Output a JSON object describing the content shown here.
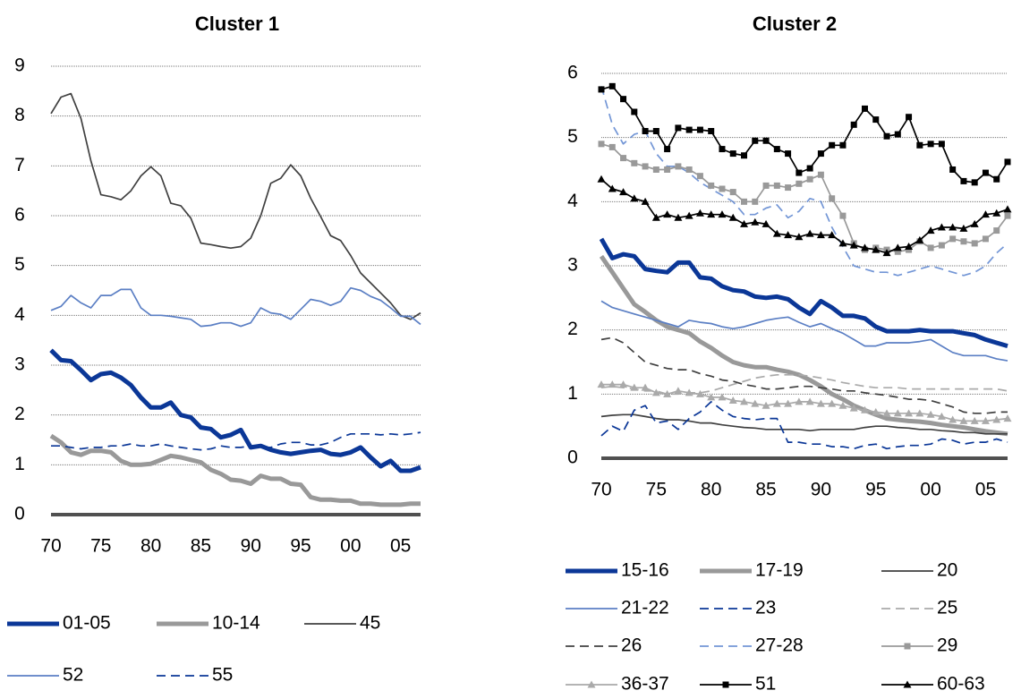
{
  "chart_data": [
    {
      "type": "line",
      "title": "Cluster 1",
      "categories": [
        "70",
        null,
        null,
        null,
        null,
        "75",
        null,
        null,
        null,
        null,
        "80",
        null,
        null,
        null,
        null,
        "85",
        null,
        null,
        null,
        null,
        "90",
        null,
        null,
        null,
        null,
        "95",
        null,
        null,
        null,
        null,
        "00",
        null,
        null,
        null,
        null,
        "05",
        null,
        null
      ],
      "ylim": [
        0,
        9
      ],
      "yticks": [
        0,
        1,
        2,
        3,
        4,
        5,
        6,
        7,
        8,
        9
      ],
      "grid": true,
      "series": [
        {
          "name": "01-05",
          "color": "#0b3797",
          "weight": "thick",
          "style": "solid",
          "values": [
            3.3,
            3.1,
            3.08,
            2.9,
            2.7,
            2.82,
            2.85,
            2.75,
            2.6,
            2.35,
            2.15,
            2.15,
            2.25,
            2.0,
            1.95,
            1.75,
            1.72,
            1.55,
            1.6,
            1.7,
            1.35,
            1.38,
            1.3,
            1.25,
            1.22,
            1.25,
            1.28,
            1.3,
            1.22,
            1.2,
            1.25,
            1.35,
            1.15,
            0.97,
            1.08,
            0.88,
            0.88,
            0.95
          ]
        },
        {
          "name": "10-14",
          "color": "#999999",
          "weight": "thick",
          "style": "solid",
          "values": [
            1.58,
            1.45,
            1.25,
            1.2,
            1.28,
            1.28,
            1.25,
            1.08,
            1.0,
            1.0,
            1.02,
            1.1,
            1.18,
            1.15,
            1.1,
            1.05,
            0.9,
            0.82,
            0.7,
            0.68,
            0.62,
            0.78,
            0.72,
            0.72,
            0.62,
            0.6,
            0.35,
            0.3,
            0.3,
            0.28,
            0.28,
            0.22,
            0.22,
            0.2,
            0.2,
            0.2,
            0.22,
            0.22
          ]
        },
        {
          "name": "45",
          "color": "#404040",
          "weight": "thin",
          "style": "solid",
          "values": [
            8.05,
            8.38,
            8.45,
            7.95,
            7.1,
            6.42,
            6.38,
            6.32,
            6.5,
            6.8,
            6.98,
            6.8,
            6.25,
            6.2,
            5.95,
            5.45,
            5.42,
            5.38,
            5.35,
            5.38,
            5.55,
            6.0,
            6.65,
            6.75,
            7.02,
            6.8,
            6.35,
            5.98,
            5.6,
            5.5,
            5.2,
            4.85,
            4.65,
            4.45,
            4.25,
            4.0,
            3.92,
            4.05
          ]
        },
        {
          "name": "52",
          "color": "#5b7fc4",
          "weight": "thin",
          "style": "solid",
          "values": [
            4.1,
            4.18,
            4.4,
            4.25,
            4.15,
            4.4,
            4.4,
            4.52,
            4.52,
            4.15,
            4.0,
            4.0,
            3.98,
            3.95,
            3.92,
            3.78,
            3.8,
            3.85,
            3.85,
            3.78,
            3.85,
            4.15,
            4.05,
            4.02,
            3.92,
            4.12,
            4.32,
            4.28,
            4.2,
            4.28,
            4.55,
            4.5,
            4.38,
            4.3,
            4.15,
            3.98,
            3.98,
            3.82
          ]
        },
        {
          "name": "55",
          "color": "#0b3797",
          "weight": "thin",
          "style": "dashed",
          "values": [
            1.38,
            1.38,
            1.35,
            1.32,
            1.35,
            1.35,
            1.38,
            1.38,
            1.42,
            1.38,
            1.38,
            1.42,
            1.38,
            1.35,
            1.32,
            1.3,
            1.32,
            1.38,
            1.35,
            1.35,
            1.38,
            1.35,
            1.35,
            1.42,
            1.45,
            1.45,
            1.4,
            1.4,
            1.45,
            1.55,
            1.62,
            1.62,
            1.62,
            1.6,
            1.62,
            1.6,
            1.62,
            1.65
          ]
        }
      ]
    },
    {
      "type": "line",
      "title": "Cluster 2",
      "categories": [
        "70",
        null,
        null,
        null,
        null,
        "75",
        null,
        null,
        null,
        null,
        "80",
        null,
        null,
        null,
        null,
        "85",
        null,
        null,
        null,
        null,
        "90",
        null,
        null,
        null,
        null,
        "95",
        null,
        null,
        null,
        null,
        "00",
        null,
        null,
        null,
        null,
        "05",
        null,
        null
      ],
      "ylim": [
        0,
        6
      ],
      "yticks": [
        0,
        1,
        2,
        3,
        4,
        5,
        6
      ],
      "grid": true,
      "series": [
        {
          "name": "15-16",
          "color": "#0b3797",
          "weight": "thick",
          "style": "solid",
          "values": [
            3.42,
            3.12,
            3.18,
            3.15,
            2.95,
            2.92,
            2.9,
            3.05,
            3.05,
            2.82,
            2.8,
            2.68,
            2.62,
            2.6,
            2.52,
            2.5,
            2.52,
            2.48,
            2.35,
            2.25,
            2.45,
            2.35,
            2.22,
            2.22,
            2.18,
            2.05,
            1.98,
            1.98,
            1.98,
            2.0,
            1.98,
            1.98,
            1.98,
            1.95,
            1.92,
            1.85,
            1.8,
            1.75
          ]
        },
        {
          "name": "17-19",
          "color": "#999999",
          "weight": "thick",
          "style": "solid",
          "values": [
            3.15,
            2.9,
            2.65,
            2.4,
            2.28,
            2.15,
            2.05,
            2.0,
            1.95,
            1.82,
            1.72,
            1.6,
            1.5,
            1.45,
            1.42,
            1.42,
            1.38,
            1.35,
            1.3,
            1.22,
            1.12,
            1.0,
            0.92,
            0.82,
            0.75,
            0.68,
            0.62,
            0.6,
            0.58,
            0.57,
            0.55,
            0.52,
            0.5,
            0.48,
            0.45,
            0.42,
            0.4,
            0.38
          ]
        },
        {
          "name": "20",
          "color": "#404040",
          "weight": "thin",
          "style": "solid",
          "values": [
            0.65,
            0.67,
            0.68,
            0.68,
            0.65,
            0.62,
            0.6,
            0.6,
            0.58,
            0.55,
            0.55,
            0.52,
            0.5,
            0.48,
            0.47,
            0.45,
            0.45,
            0.45,
            0.45,
            0.43,
            0.45,
            0.45,
            0.45,
            0.45,
            0.48,
            0.5,
            0.5,
            0.48,
            0.47,
            0.45,
            0.45,
            0.43,
            0.42,
            0.4,
            0.4,
            0.38,
            0.38,
            0.38
          ]
        },
        {
          "name": "21-22",
          "color": "#5b7fc4",
          "weight": "thin",
          "style": "solid",
          "values": [
            2.45,
            2.35,
            2.3,
            2.25,
            2.2,
            2.15,
            2.1,
            2.05,
            2.15,
            2.12,
            2.1,
            2.05,
            2.02,
            2.05,
            2.1,
            2.15,
            2.18,
            2.2,
            2.12,
            2.05,
            2.1,
            2.02,
            1.95,
            1.85,
            1.75,
            1.75,
            1.8,
            1.8,
            1.8,
            1.82,
            1.85,
            1.75,
            1.65,
            1.6,
            1.6,
            1.6,
            1.55,
            1.52
          ]
        },
        {
          "name": "23",
          "color": "#0b3797",
          "weight": "thin",
          "style": "dashed",
          "values": [
            0.35,
            0.5,
            0.42,
            0.75,
            0.82,
            0.55,
            0.58,
            0.45,
            0.62,
            0.72,
            0.88,
            0.75,
            0.65,
            0.62,
            0.6,
            0.62,
            0.62,
            0.25,
            0.25,
            0.22,
            0.22,
            0.18,
            0.18,
            0.15,
            0.2,
            0.22,
            0.15,
            0.18,
            0.2,
            0.2,
            0.22,
            0.3,
            0.28,
            0.22,
            0.25,
            0.25,
            0.3,
            0.25
          ]
        },
        {
          "name": "25",
          "color": "#aaaaaa",
          "weight": "thin",
          "style": "dashed",
          "values": [
            1.1,
            1.12,
            1.1,
            1.08,
            1.05,
            1.05,
            1.0,
            1.0,
            1.02,
            1.02,
            1.05,
            1.1,
            1.15,
            1.2,
            1.25,
            1.28,
            1.3,
            1.3,
            1.3,
            1.28,
            1.25,
            1.22,
            1.18,
            1.15,
            1.12,
            1.1,
            1.1,
            1.1,
            1.08,
            1.08,
            1.08,
            1.08,
            1.08,
            1.08,
            1.08,
            1.08,
            1.08,
            1.05
          ]
        },
        {
          "name": "26",
          "color": "#404040",
          "weight": "thin",
          "style": "dashed",
          "values": [
            1.85,
            1.88,
            1.8,
            1.65,
            1.5,
            1.45,
            1.4,
            1.38,
            1.38,
            1.32,
            1.28,
            1.22,
            1.2,
            1.15,
            1.12,
            1.08,
            1.08,
            1.1,
            1.12,
            1.12,
            1.1,
            1.08,
            1.05,
            1.05,
            1.02,
            1.0,
            0.98,
            0.95,
            0.92,
            0.92,
            0.9,
            0.85,
            0.8,
            0.72,
            0.7,
            0.7,
            0.72,
            0.72
          ]
        },
        {
          "name": "27-28",
          "color": "#7396d6",
          "weight": "thin",
          "style": "dashed",
          "values": [
            5.8,
            5.2,
            4.9,
            5.05,
            5.1,
            4.75,
            4.55,
            4.55,
            4.45,
            4.3,
            4.2,
            4.1,
            4.0,
            3.8,
            3.8,
            3.9,
            3.95,
            3.75,
            3.85,
            4.05,
            4.0,
            3.6,
            3.3,
            3.0,
            2.95,
            2.9,
            2.9,
            2.85,
            2.9,
            2.95,
            3.0,
            2.95,
            2.9,
            2.85,
            2.9,
            3.0,
            3.2,
            3.35
          ]
        },
        {
          "name": "29",
          "color": "#999999",
          "weight": "thin",
          "style": "solid",
          "marker": "square",
          "values": [
            4.9,
            4.85,
            4.68,
            4.6,
            4.55,
            4.5,
            4.5,
            4.55,
            4.5,
            4.4,
            4.25,
            4.2,
            4.15,
            4.0,
            4.0,
            4.25,
            4.25,
            4.22,
            4.28,
            4.35,
            4.42,
            4.05,
            3.78,
            3.35,
            3.25,
            3.28,
            3.25,
            3.22,
            3.25,
            3.38,
            3.28,
            3.32,
            3.42,
            3.38,
            3.35,
            3.42,
            3.55,
            3.78
          ]
        },
        {
          "name": "36-37",
          "color": "#aaaaaa",
          "weight": "thin",
          "style": "solid",
          "marker": "triangle",
          "values": [
            1.15,
            1.15,
            1.15,
            1.1,
            1.1,
            1.02,
            1.0,
            1.05,
            1.02,
            1.0,
            0.95,
            0.95,
            0.9,
            0.88,
            0.85,
            0.82,
            0.85,
            0.85,
            0.88,
            0.88,
            0.85,
            0.85,
            0.82,
            0.78,
            0.75,
            0.72,
            0.7,
            0.7,
            0.7,
            0.7,
            0.68,
            0.65,
            0.6,
            0.58,
            0.58,
            0.58,
            0.6,
            0.62
          ]
        },
        {
          "name": "51",
          "color": "#000000",
          "weight": "thin",
          "style": "solid",
          "marker": "square",
          "values": [
            5.75,
            5.8,
            5.6,
            5.4,
            5.1,
            5.1,
            4.82,
            5.15,
            5.12,
            5.12,
            5.1,
            4.82,
            4.75,
            4.72,
            4.95,
            4.95,
            4.82,
            4.75,
            4.45,
            4.52,
            4.75,
            4.88,
            4.88,
            5.2,
            5.45,
            5.28,
            5.02,
            5.05,
            5.32,
            4.88,
            4.9,
            4.9,
            4.5,
            4.32,
            4.3,
            4.45,
            4.35,
            4.62
          ]
        },
        {
          "name": "60-63",
          "color": "#000000",
          "weight": "thin",
          "style": "solid",
          "marker": "triangle",
          "values": [
            4.35,
            4.2,
            4.15,
            4.05,
            4.0,
            3.75,
            3.8,
            3.75,
            3.78,
            3.82,
            3.8,
            3.8,
            3.75,
            3.65,
            3.68,
            3.65,
            3.5,
            3.48,
            3.45,
            3.5,
            3.48,
            3.48,
            3.35,
            3.32,
            3.28,
            3.25,
            3.2,
            3.28,
            3.3,
            3.4,
            3.55,
            3.6,
            3.6,
            3.58,
            3.65,
            3.8,
            3.82,
            3.88
          ]
        }
      ]
    }
  ]
}
